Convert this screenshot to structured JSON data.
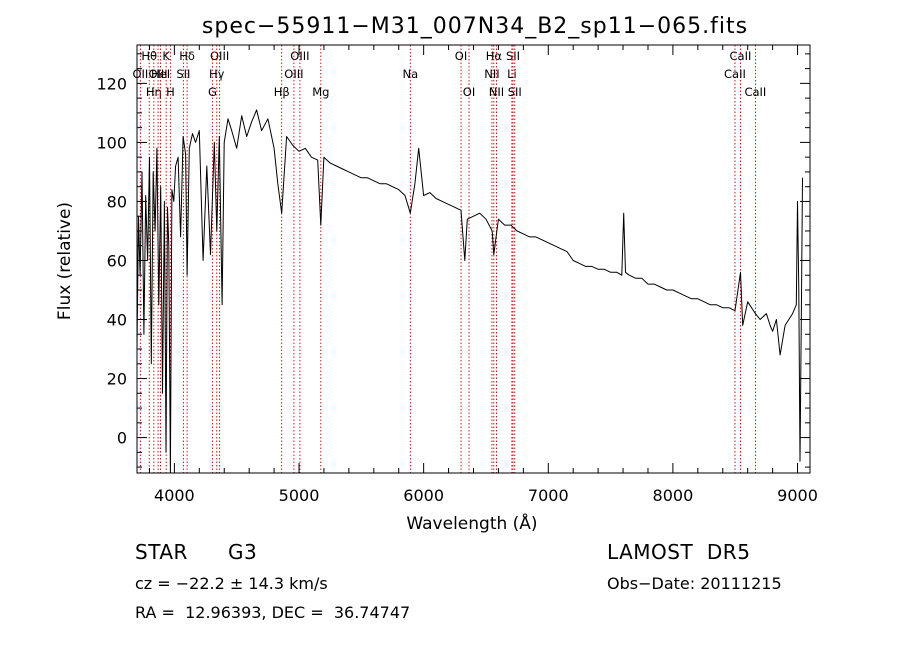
{
  "chart_data": {
    "type": "line",
    "title": "spec−55911−M31_007N34_B2_sp11−065.fits",
    "xlabel": "Wavelength (Å)",
    "ylabel": "Flux (relative)",
    "xlim": [
      3700,
      9100
    ],
    "ylim": [
      -12,
      133
    ],
    "xticks": [
      4000,
      5000,
      6000,
      7000,
      8000,
      9000
    ],
    "yticks": [
      0,
      20,
      40,
      60,
      80,
      100,
      120
    ],
    "x_minor_step": 200,
    "y_minor_step": 5,
    "grid": false,
    "line_color": "#000000",
    "marker_color": "#c00000",
    "series": [
      {
        "x": [
          3700,
          3712,
          3725,
          3740,
          3755,
          3770,
          3785,
          3800,
          3815,
          3830,
          3845,
          3860,
          3875,
          3890,
          3905,
          3920,
          3933,
          3945,
          3955,
          3968,
          3980,
          3995,
          4010,
          4030,
          4050,
          4070,
          4090,
          4102,
          4120,
          4145,
          4170,
          4200,
          4230,
          4260,
          4290,
          4320,
          4340,
          4360,
          4383,
          4400,
          4430,
          4460,
          4500,
          4540,
          4580,
          4620,
          4660,
          4700,
          4750,
          4800,
          4830,
          4861,
          4900,
          4950,
          5000,
          5050,
          5100,
          5150,
          5175,
          5200,
          5250,
          5300,
          5350,
          5400,
          5450,
          5500,
          5550,
          5600,
          5650,
          5700,
          5750,
          5800,
          5850,
          5893,
          5930,
          5960,
          5990,
          6000,
          6050,
          6100,
          6150,
          6200,
          6250,
          6300,
          6330,
          6350,
          6400,
          6450,
          6500,
          6550,
          6563,
          6600,
          6650,
          6700,
          6750,
          6800,
          6850,
          6900,
          6950,
          7000,
          7050,
          7100,
          7150,
          7200,
          7250,
          7300,
          7350,
          7400,
          7450,
          7500,
          7550,
          7590,
          7605,
          7620,
          7650,
          7700,
          7750,
          7800,
          7850,
          7900,
          7950,
          8000,
          8050,
          8100,
          8150,
          8200,
          8250,
          8300,
          8350,
          8400,
          8450,
          8498,
          8542,
          8560,
          8600,
          8662,
          8700,
          8750,
          8780,
          8800,
          8830,
          8860,
          8900,
          8930,
          8960,
          8990,
          9000,
          9010,
          9020,
          9030,
          9040
        ],
        "y": [
          30,
          75,
          55,
          90,
          35,
          82,
          60,
          95,
          25,
          90,
          70,
          98,
          45,
          85,
          15,
          80,
          -5,
          78,
          65,
          -12,
          84,
          80,
          92,
          95,
          68,
          102,
          96,
          55,
          98,
          103,
          100,
          104,
          60,
          92,
          62,
          100,
          70,
          102,
          45,
          100,
          108,
          104,
          98,
          109,
          102,
          107,
          111,
          104,
          108,
          98,
          86,
          76,
          102,
          99,
          97,
          98,
          95,
          94,
          72,
          95,
          93,
          92,
          91,
          90,
          89,
          88,
          88,
          87,
          86,
          86,
          85,
          84,
          82,
          76,
          86,
          98,
          86,
          82,
          83,
          81,
          80,
          79,
          78,
          77,
          60,
          74,
          75,
          76,
          74,
          70,
          62,
          74,
          72,
          72,
          70,
          69,
          68,
          68,
          67,
          66,
          65,
          64,
          63,
          60,
          59,
          58,
          58,
          57,
          57,
          56,
          56,
          55,
          76,
          56,
          55,
          54,
          54,
          52,
          52,
          51,
          50,
          50,
          49,
          48,
          47,
          47,
          46,
          45,
          45,
          44,
          44,
          43,
          56,
          38,
          46,
          42,
          40,
          42,
          38,
          36,
          40,
          28,
          38,
          40,
          42,
          45,
          80,
          50,
          -8,
          40,
          88
        ]
      }
    ],
    "line_markers": [
      {
        "label": "Hθ",
        "x": 3798,
        "row": 1
      },
      {
        "label": "OII",
        "x": 3727,
        "row": 2
      },
      {
        "label": "Hη",
        "x": 3835,
        "row": 3
      },
      {
        "label": "OIII",
        "x": 3869,
        "row": 2
      },
      {
        "label": "K",
        "x": 3934,
        "row": 1
      },
      {
        "label": "HeI",
        "x": 3889,
        "row": 2
      },
      {
        "label": "H",
        "x": 3968,
        "row": 3
      },
      {
        "label": "Hδ",
        "x": 4102,
        "row": 1
      },
      {
        "label": "SII",
        "x": 4072,
        "row": 2
      },
      {
        "label": "OIII",
        "x": 4363,
        "row": 1
      },
      {
        "label": "Hγ",
        "x": 4340,
        "row": 2
      },
      {
        "label": "G",
        "x": 4305,
        "row": 3
      },
      {
        "label": "Hβ",
        "x": 4861,
        "row": 3
      },
      {
        "label": "OIII",
        "x": 5007,
        "row": 1
      },
      {
        "label": "OIII",
        "x": 4959,
        "row": 2
      },
      {
        "label": "Mg",
        "x": 5175,
        "row": 3
      },
      {
        "label": "Na",
        "x": 5893,
        "row": 2
      },
      {
        "label": "OI",
        "x": 6300,
        "row": 1
      },
      {
        "label": "OI",
        "x": 6364,
        "row": 3
      },
      {
        "label": "Hα",
        "x": 6563,
        "row": 1
      },
      {
        "label": "NII",
        "x": 6548,
        "row": 2
      },
      {
        "label": "NII",
        "x": 6584,
        "row": 3
      },
      {
        "label": "SII",
        "x": 6717,
        "row": 1
      },
      {
        "label": "Li",
        "x": 6708,
        "row": 2
      },
      {
        "label": "SII",
        "x": 6731,
        "row": 3
      },
      {
        "label": "CaII",
        "x": 8542,
        "row": 1
      },
      {
        "label": "CaII",
        "x": 8498,
        "row": 2
      },
      {
        "label": "CaII",
        "x": 8662,
        "row": 3
      }
    ]
  },
  "info": {
    "class_label": "STAR",
    "subclass": "G3",
    "survey": "LAMOST  DR5",
    "cz_line": "cz = −22.2 ± 14.3 km/s",
    "obs_date": "Obs−Date: 20111215",
    "coords_line": "RA =  12.96393, DEC =  36.74747"
  }
}
